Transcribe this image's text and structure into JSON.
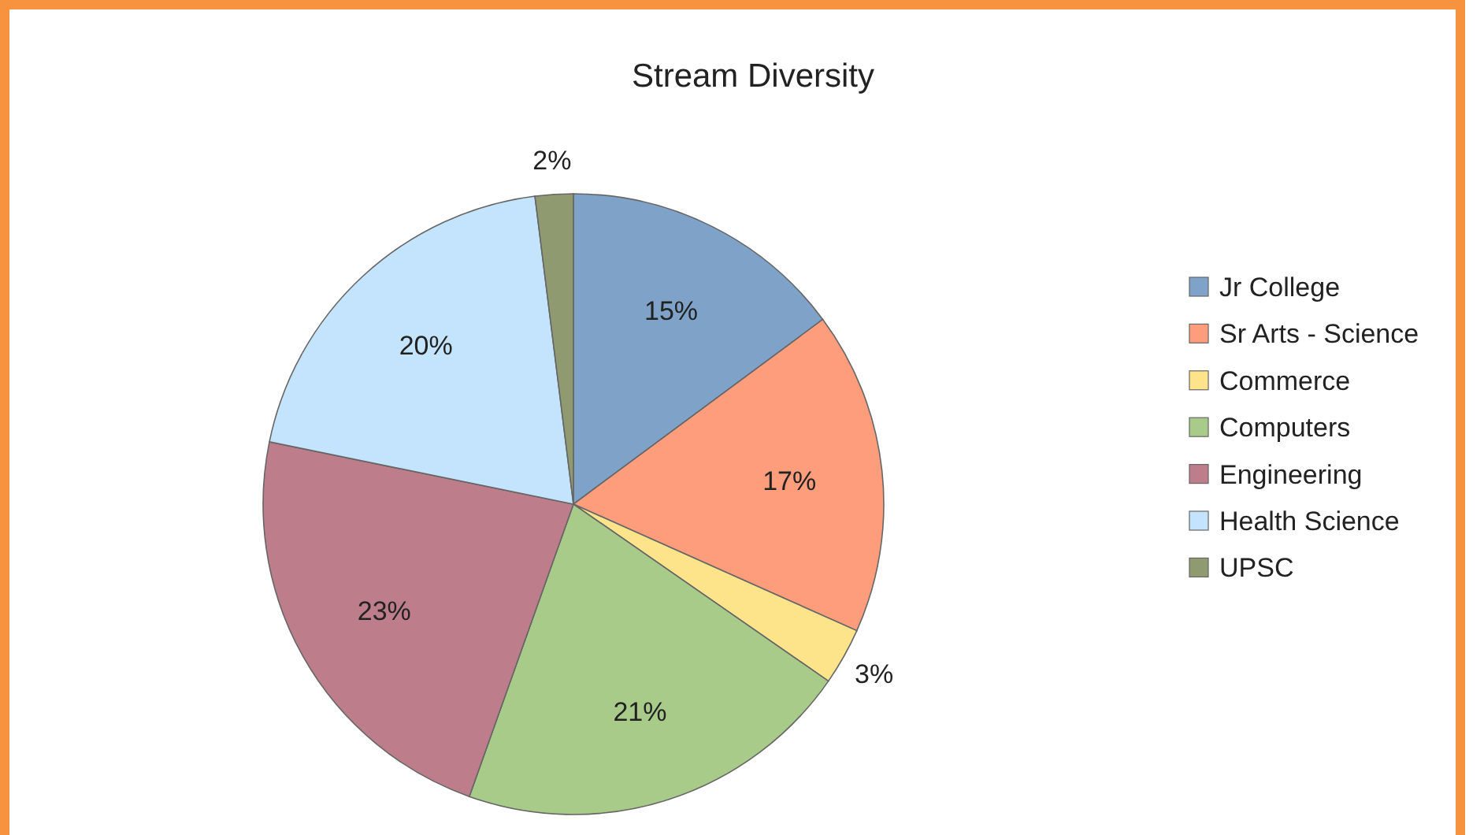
{
  "chart_data": {
    "type": "pie",
    "title": "Stream Diversity",
    "categories": [
      "Jr College",
      "Sr Arts - Science",
      "Commerce",
      "Computers",
      "Engineering",
      "Health Science",
      "UPSC"
    ],
    "values": [
      15,
      17,
      3,
      21,
      23,
      20,
      2
    ],
    "colors": [
      "#7fa3c8",
      "#fd9d7c",
      "#fde48b",
      "#a9cb8a",
      "#bd7d8b",
      "#c4e3fc",
      "#8f9a70"
    ],
    "value_labels": [
      "15%",
      "17%",
      "3%",
      "21%",
      "23%",
      "20%",
      "2%"
    ],
    "legend": "right"
  }
}
